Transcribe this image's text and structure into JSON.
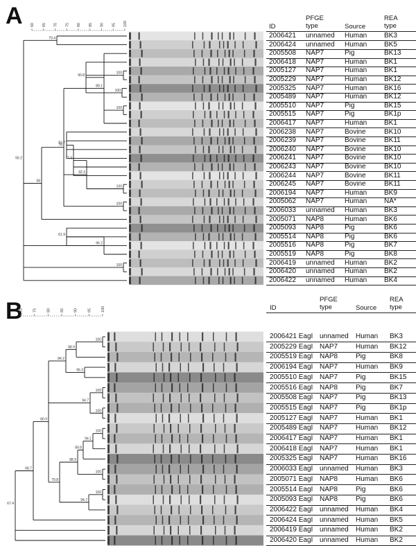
{
  "panelA": {
    "letter": "A",
    "scale_ticks": [
      "60",
      "65",
      "70",
      "75",
      "80",
      "85",
      "90",
      "95",
      "100"
    ],
    "headers": {
      "id": "ID",
      "pfge": "PFGE\ntype",
      "source": "Source",
      "rea": "REA\ntype"
    },
    "rows": [
      {
        "id": "2006421",
        "pfge": "unnamed",
        "source": "Human",
        "rea": "BK3"
      },
      {
        "id": "2006424",
        "pfge": "unnamed",
        "source": "Human",
        "rea": "BK5"
      },
      {
        "id": "2005508",
        "pfge": "NAP7",
        "source": "Pig",
        "rea": "BK13"
      },
      {
        "id": "2006418",
        "pfge": "NAP7",
        "source": "Human",
        "rea": "BK1"
      },
      {
        "id": "2005127",
        "pfge": "NAP7",
        "source": "Human",
        "rea": "BK1"
      },
      {
        "id": "2005229",
        "pfge": "NAP7",
        "source": "Human",
        "rea": "BK12"
      },
      {
        "id": "2005325",
        "pfge": "NAP7",
        "source": "Human",
        "rea": "BK16"
      },
      {
        "id": "2005489",
        "pfge": "NAP7",
        "source": "Human",
        "rea": "BK12"
      },
      {
        "id": "2005510",
        "pfge": "NAP7",
        "source": "Pig",
        "rea": "BK15"
      },
      {
        "id": "2005515",
        "pfge": "NAP7",
        "source": "Pig",
        "rea": "BK1p"
      },
      {
        "id": "2006417",
        "pfge": "NAP7",
        "source": "Human",
        "rea": "BK1"
      },
      {
        "id": "2006238",
        "pfge": "NAP7",
        "source": "Bovine",
        "rea": "BK10"
      },
      {
        "id": "2006239",
        "pfge": "NAP7",
        "source": "Bovine",
        "rea": "BK11"
      },
      {
        "id": "2006240",
        "pfge": "NAP7",
        "source": "Bovine",
        "rea": "BK10"
      },
      {
        "id": "2006241",
        "pfge": "NAP7",
        "source": "Bovine",
        "rea": "BK10"
      },
      {
        "id": "2006243",
        "pfge": "NAP7",
        "source": "Bovine",
        "rea": "BK10"
      },
      {
        "id": "2006244",
        "pfge": "NAP7",
        "source": "Bovine",
        "rea": "BK11"
      },
      {
        "id": "2006245",
        "pfge": "NAP7",
        "source": "Bovine",
        "rea": "BK11"
      },
      {
        "id": "2006194",
        "pfge": "NAP7",
        "source": "Human",
        "rea": "BK9"
      },
      {
        "id": "2005062",
        "pfge": "NAP7",
        "source": "Human",
        "rea": "NA*"
      },
      {
        "id": "2006033",
        "pfge": "unnamed",
        "source": "Human",
        "rea": "BK3"
      },
      {
        "id": "2005071",
        "pfge": "NAP8",
        "source": "Human",
        "rea": "BK6"
      },
      {
        "id": "2005093",
        "pfge": "NAP8",
        "source": "Pig",
        "rea": "BK6"
      },
      {
        "id": "2005514",
        "pfge": "NAP8",
        "source": "Pig",
        "rea": "BK6"
      },
      {
        "id": "2005516",
        "pfge": "NAP8",
        "source": "Pig",
        "rea": "BK7"
      },
      {
        "id": "2005519",
        "pfge": "NAP8",
        "source": "Pig",
        "rea": "BK8"
      },
      {
        "id": "2006419",
        "pfge": "unnamed",
        "source": "Human",
        "rea": "BK2"
      },
      {
        "id": "2006420",
        "pfge": "unnamed",
        "source": "Human",
        "rea": "BK2"
      },
      {
        "id": "2006422",
        "pfge": "unnamed",
        "source": "Human",
        "rea": "BK4"
      }
    ],
    "node_labels": [
      "79.4",
      "100",
      "100",
      "90.8",
      "100",
      "89.1",
      "83.7",
      "77.3",
      "100",
      "92.3",
      "100",
      "76",
      "58",
      "61.9",
      "96.2",
      "100",
      "56.2"
    ]
  },
  "panelB": {
    "letter": "B",
    "scale_ticks": [
      "70",
      "75",
      "80",
      "85",
      "90",
      "95",
      "100"
    ],
    "headers": {
      "id": "ID",
      "pfge": "PFGE\ntype",
      "source": "Source",
      "rea": "REA\ntype"
    },
    "rows": [
      {
        "id": "2006421 EagI",
        "pfge": "unnamed",
        "source": "Human",
        "rea": "BK3"
      },
      {
        "id": "2005229 EagI",
        "pfge": "NAP7",
        "source": "Human",
        "rea": "BK12"
      },
      {
        "id": "2005519 EagI",
        "pfge": "NAP8",
        "source": "Pig",
        "rea": "BK8"
      },
      {
        "id": "2006194 EagI",
        "pfge": "NAP7",
        "source": "Human",
        "rea": "BK9"
      },
      {
        "id": "2005510 EagI",
        "pfge": "NAP7",
        "source": "Pig",
        "rea": "BK15"
      },
      {
        "id": "2005516 EagI",
        "pfge": "NAP8",
        "source": "Pig",
        "rea": "BK7"
      },
      {
        "id": "2005508 EagI",
        "pfge": "NAP7",
        "source": "Pig",
        "rea": "BK13"
      },
      {
        "id": "2005515 EagI",
        "pfge": "NAP7",
        "source": "Pig",
        "rea": "BK1p"
      },
      {
        "id": "2005127 EagI",
        "pfge": "NAP7",
        "source": "Human",
        "rea": "BK1"
      },
      {
        "id": "2005489 EagI",
        "pfge": "NAP7",
        "source": "Human",
        "rea": "BK12"
      },
      {
        "id": "2006417 EagI",
        "pfge": "NAP7",
        "source": "Human",
        "rea": "BK1"
      },
      {
        "id": "2006418 EagI",
        "pfge": "NAP7",
        "source": "Human",
        "rea": "BK1"
      },
      {
        "id": "2005325 EagI",
        "pfge": "NAP7",
        "source": "Human",
        "rea": "BK16"
      },
      {
        "id": "2006033 EagI",
        "pfge": "unnamed",
        "source": "Human",
        "rea": "BK3"
      },
      {
        "id": "2005071 EagI",
        "pfge": "NAP8",
        "source": "Human",
        "rea": "BK6"
      },
      {
        "id": "2005514 EagI",
        "pfge": "NAP8",
        "source": "Pig",
        "rea": "BK6"
      },
      {
        "id": "2005093 EagI",
        "pfge": "NAP8",
        "source": "Pig",
        "rea": "BK6"
      },
      {
        "id": "2006422 EagI",
        "pfge": "unnamed",
        "source": "Human",
        "rea": "BK4"
      },
      {
        "id": "2006424 EagI",
        "pfge": "unnamed",
        "source": "Human",
        "rea": "BK5"
      },
      {
        "id": "2006419 EagI",
        "pfge": "unnamed",
        "source": "Human",
        "rea": "BK2"
      },
      {
        "id": "2006420 EagI",
        "pfge": "unnamed",
        "source": "Human",
        "rea": "BK2"
      }
    ],
    "node_labels": [
      "100",
      "88.9",
      "96.3",
      "100",
      "84.2",
      "100",
      "94.7",
      "100",
      "94.1",
      "89.8",
      "100",
      "88.9",
      "100",
      "94.7",
      "79.8",
      "80.9",
      "68.7",
      "67.4"
    ]
  }
}
